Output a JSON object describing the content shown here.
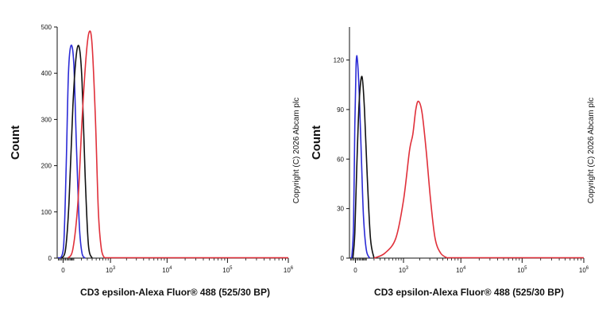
{
  "chart_data": [
    {
      "type": "line",
      "xlabel": "CD3 epsilon-Alexa Fluor® 488 (525/30 BP)",
      "ylabel": "Count",
      "xscale": "biexponential",
      "xlim": [
        -50,
        1000000
      ],
      "ylim": [
        0,
        500
      ],
      "yticks": [
        0,
        100,
        200,
        300,
        400,
        500
      ],
      "xticks": [
        {
          "value": 0,
          "label": "0"
        },
        {
          "value": 1000,
          "label": "10",
          "exp": "3"
        },
        {
          "value": 10000,
          "label": "10",
          "exp": "4"
        },
        {
          "value": 100000,
          "label": "10",
          "exp": "5"
        },
        {
          "value": 1000000,
          "label": "10",
          "exp": "6"
        }
      ],
      "copyright": "Copyright (C) 2026 Abcam plc",
      "series": [
        {
          "color": "#2b2bd6",
          "x": [
            -20,
            5,
            25,
            45,
            70,
            100,
            130,
            170,
            210,
            260
          ],
          "y": [
            0,
            30,
            200,
            400,
            460,
            420,
            250,
            70,
            10,
            0
          ]
        },
        {
          "color": "#111111",
          "x": [
            -10,
            20,
            50,
            90,
            130,
            170,
            210,
            260,
            320,
            400
          ],
          "y": [
            0,
            20,
            120,
            330,
            440,
            455,
            380,
            180,
            30,
            0
          ]
        },
        {
          "color": "#e0303a",
          "x": [
            40,
            90,
            150,
            210,
            280,
            340,
            400,
            480,
            560,
            650,
            760
          ],
          "y": [
            0,
            20,
            120,
            300,
            440,
            490,
            460,
            300,
            100,
            20,
            0
          ]
        }
      ]
    },
    {
      "type": "line",
      "xlabel": "CD3 epsilon-Alexa Fluor® 488 (525/30 BP)",
      "ylabel": "Count",
      "xscale": "biexponential",
      "xlim": [
        -50,
        1000000
      ],
      "ylim": [
        0,
        140
      ],
      "yticks": [
        0,
        30,
        60,
        90,
        120
      ],
      "xticks": [
        {
          "value": 0,
          "label": "0"
        },
        {
          "value": 1000,
          "label": "10",
          "exp": "3"
        },
        {
          "value": 10000,
          "label": "10",
          "exp": "4"
        },
        {
          "value": 100000,
          "label": "10",
          "exp": "5"
        },
        {
          "value": 1000000,
          "label": "10",
          "exp": "6"
        }
      ],
      "copyright": "Copyright (C) 2026 Abcam plc",
      "series": [
        {
          "color": "#2b2bd6",
          "x": [
            -30,
            -15,
            -5,
            5,
            15,
            30,
            50,
            70,
            100,
            140
          ],
          "y": [
            0,
            20,
            80,
            118,
            120,
            100,
            60,
            25,
            5,
            0
          ]
        },
        {
          "color": "#111111",
          "x": [
            -20,
            -5,
            10,
            30,
            55,
            80,
            110,
            150,
            200
          ],
          "y": [
            0,
            15,
            55,
            95,
            110,
            90,
            50,
            12,
            0
          ]
        },
        {
          "color": "#e0303a",
          "x": [
            200,
            400,
            700,
            1000,
            1300,
            1500,
            1700,
            1900,
            2200,
            2600,
            3100,
            3700,
            4600,
            6000
          ],
          "y": [
            0,
            3,
            12,
            35,
            65,
            75,
            90,
            95,
            88,
            65,
            35,
            12,
            3,
            0
          ]
        }
      ]
    }
  ]
}
